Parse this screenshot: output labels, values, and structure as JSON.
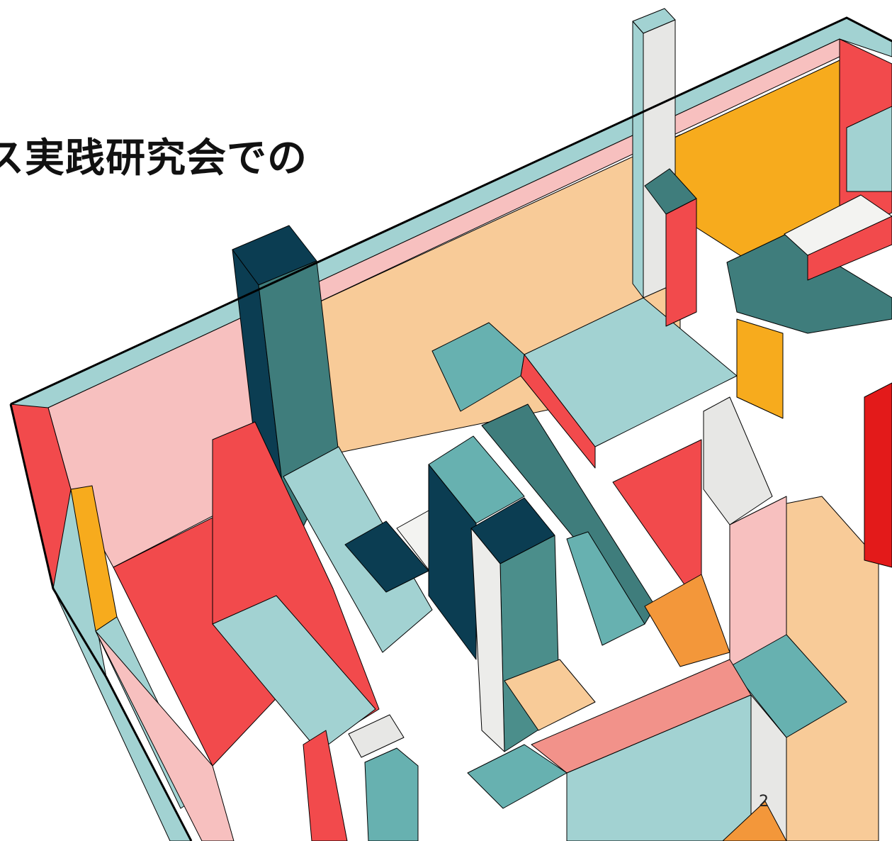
{
  "slide": {
    "title": "ス実践研究会での",
    "page_number": "2"
  }
}
